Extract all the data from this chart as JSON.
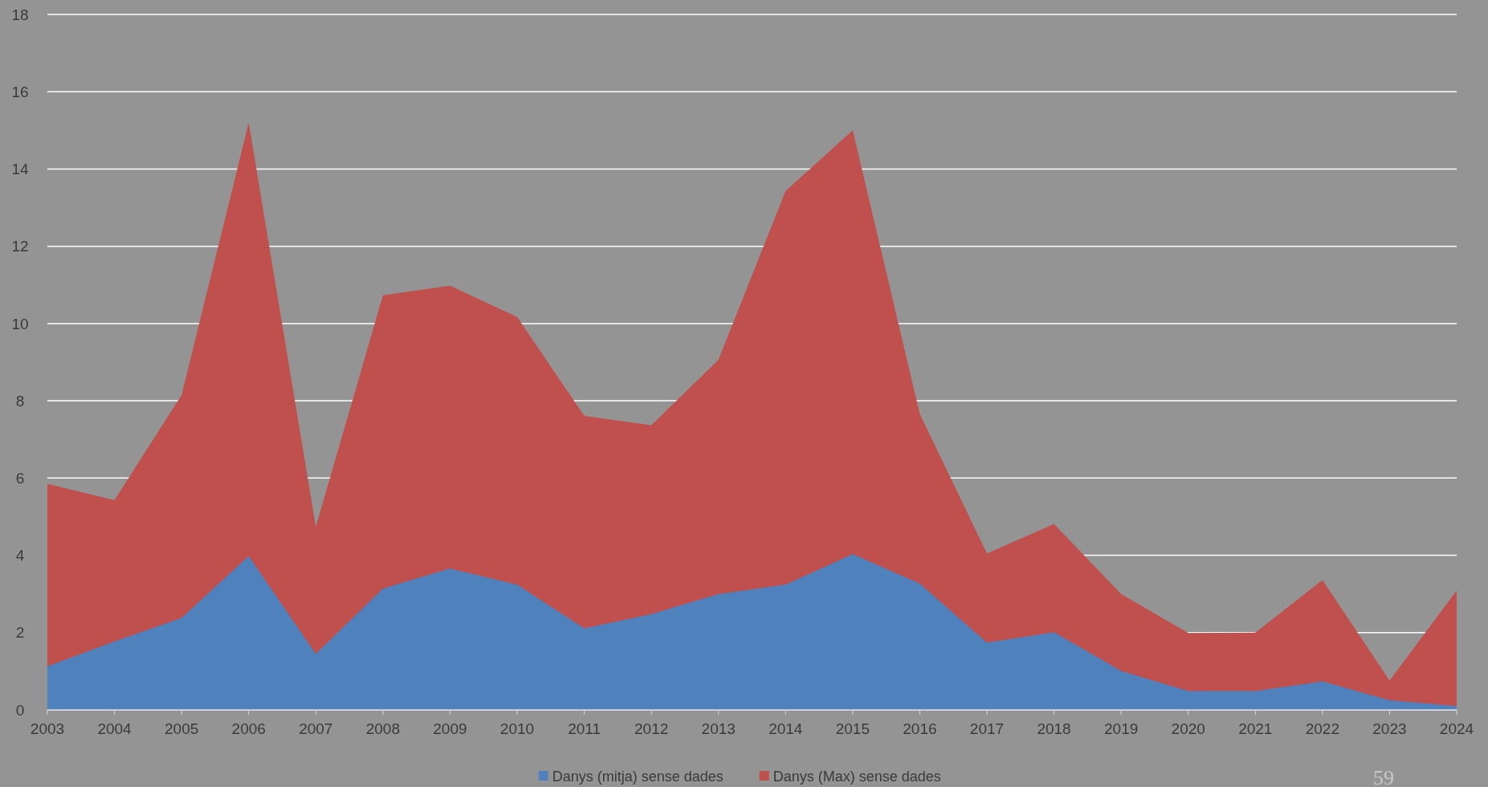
{
  "chart_data": {
    "type": "area",
    "categories": [
      "2003",
      "2004",
      "2005",
      "2006",
      "2007",
      "2008",
      "2009",
      "2010",
      "2011",
      "2012",
      "2013",
      "2014",
      "2015",
      "2016",
      "2017",
      "2018",
      "2019",
      "2020",
      "2021",
      "2022",
      "2023",
      "2024"
    ],
    "series": [
      {
        "name": "Danys (mitja) sense dades",
        "color": "#4f81bd",
        "values": [
          1.13,
          1.77,
          2.38,
          3.98,
          1.45,
          3.14,
          3.66,
          3.24,
          2.11,
          2.48,
          3.0,
          3.24,
          4.03,
          3.27,
          1.74,
          2.01,
          1.01,
          0.49,
          0.49,
          0.74,
          0.25,
          0.1
        ]
      },
      {
        "name": "Danys (Max) sense dades",
        "color": "#c0504d",
        "values": [
          5.85,
          5.43,
          8.15,
          15.2,
          4.74,
          10.73,
          10.98,
          10.17,
          7.61,
          7.37,
          9.06,
          13.43,
          15.0,
          7.66,
          4.05,
          4.81,
          3.0,
          1.99,
          2.0,
          3.36,
          0.76,
          3.09
        ]
      }
    ],
    "ylim": [
      0,
      18
    ],
    "yticks": [
      0,
      2,
      4,
      6,
      8,
      10,
      12,
      14,
      16,
      18
    ],
    "grid": "y",
    "legend": "bottom",
    "annotations": [
      "59"
    ]
  }
}
